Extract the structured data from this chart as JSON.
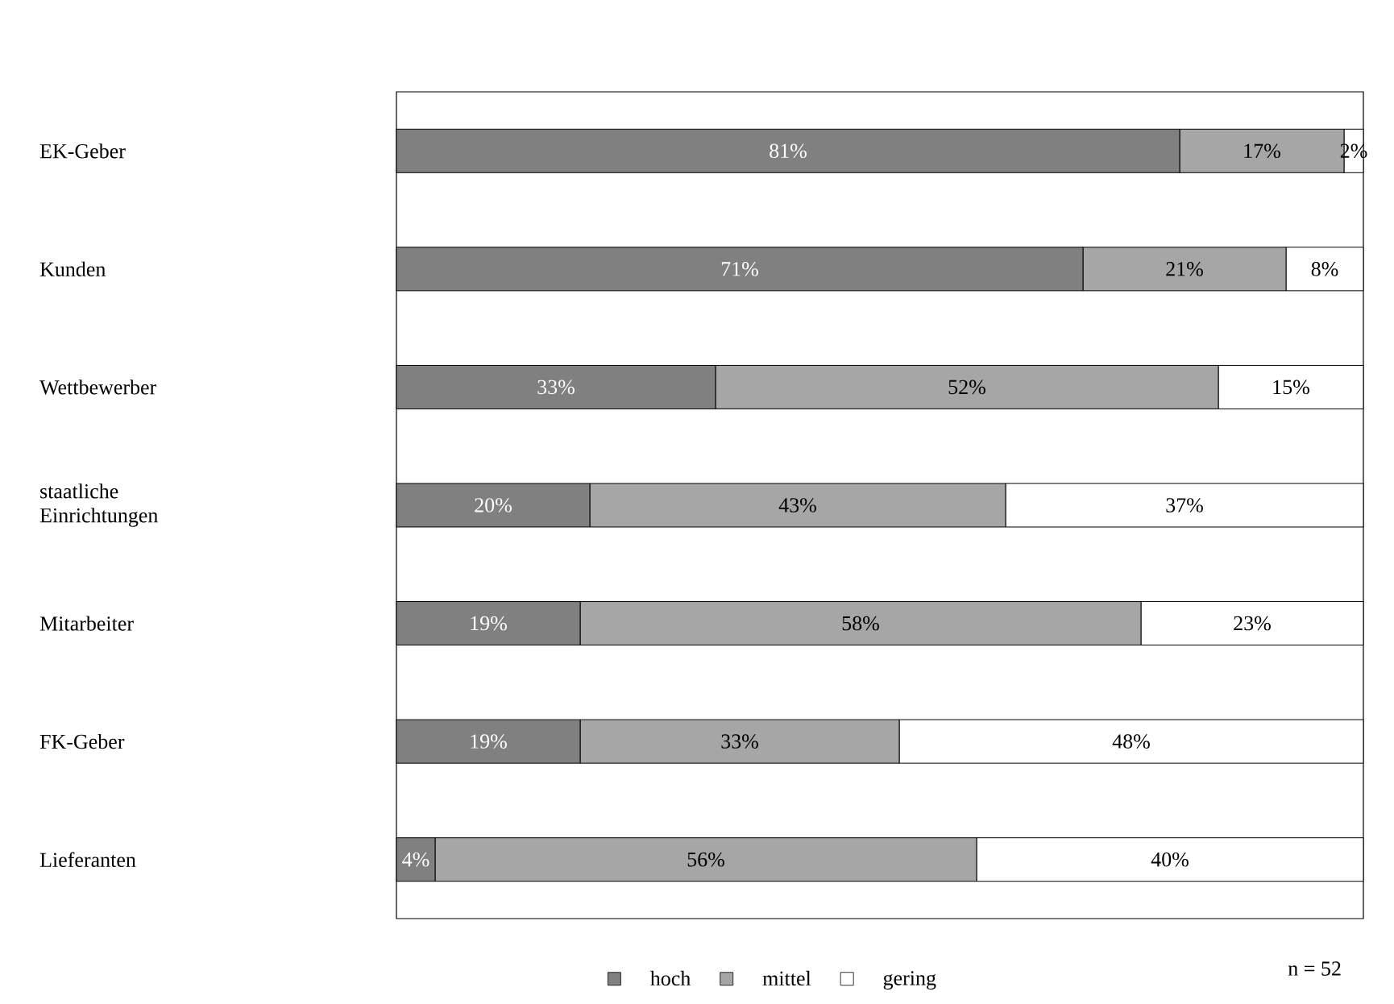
{
  "chart_data": {
    "type": "bar",
    "orientation": "horizontal",
    "stacked": true,
    "categories": [
      "EK-Geber",
      "Kunden",
      "Wettbewerber",
      "staatliche Einrichtungen",
      "Mitarbeiter",
      "FK-Geber",
      "Lieferanten"
    ],
    "xlim": [
      0,
      100
    ],
    "series": [
      {
        "name": "hoch",
        "color": "#808080",
        "values": [
          81,
          71,
          33,
          20,
          19,
          19,
          4
        ],
        "value_labels": [
          "81%",
          "71%",
          "33%",
          "20%",
          "19%",
          "19%",
          "4%"
        ]
      },
      {
        "name": "mittel",
        "color": "#a6a6a6",
        "values": [
          17,
          21,
          52,
          43,
          58,
          33,
          56
        ],
        "value_labels": [
          "17%",
          "21%",
          "52%",
          "43%",
          "58%",
          "33%",
          "56%"
        ]
      },
      {
        "name": "gering",
        "color": "#ffffff",
        "values": [
          2,
          8,
          15,
          37,
          23,
          48,
          40
        ],
        "value_labels": [
          "2%",
          "8%",
          "15%",
          "37%",
          "23%",
          "48%",
          "40%"
        ]
      }
    ],
    "legend": "bottom",
    "annotations": [
      "n = 52"
    ]
  }
}
